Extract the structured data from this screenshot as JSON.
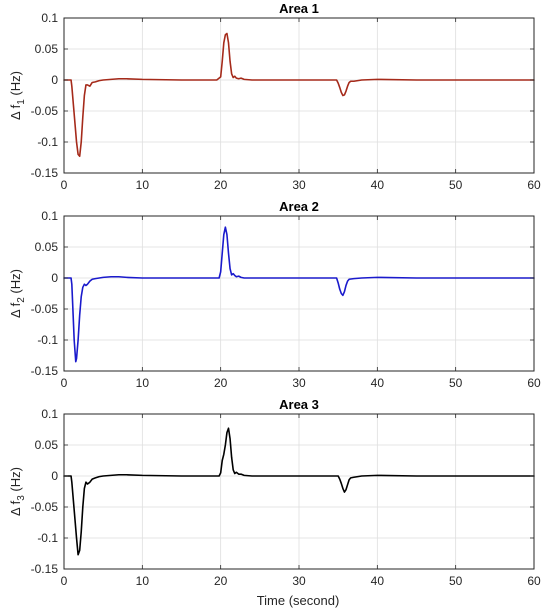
{
  "figure": {
    "xlabel": "Time (second)"
  },
  "chart_data": [
    {
      "type": "line",
      "title": "Area 1",
      "ylabel": {
        "prefix": "Δ f",
        "sub": "1",
        "suffix": " (Hz)"
      },
      "xlim": [
        0,
        60
      ],
      "ylim": [
        -0.15,
        0.1
      ],
      "xticks": [
        "0",
        "10",
        "20",
        "30",
        "40",
        "50",
        "60"
      ],
      "yticks": [
        "0.1",
        "0.05",
        "0",
        "-0.05",
        "-0.1",
        "-0.15"
      ],
      "grid": true,
      "color": "#a52a1a",
      "x": [
        0,
        0.9,
        1.0,
        1.2,
        1.4,
        1.6,
        1.8,
        2.0,
        2.2,
        2.4,
        2.6,
        2.8,
        3.0,
        3.3,
        3.6,
        4.0,
        4.5,
        5.0,
        6.0,
        7.0,
        8.0,
        10.0,
        15.0,
        19.5,
        20.0,
        20.2,
        20.4,
        20.6,
        20.8,
        21.0,
        21.2,
        21.4,
        21.6,
        21.8,
        22.0,
        22.3,
        22.6,
        23.0,
        24.0,
        25.0,
        30.0,
        34.8,
        35.0,
        35.2,
        35.4,
        35.6,
        35.8,
        36.0,
        36.2,
        36.4,
        36.6,
        37.0,
        38.0,
        40.0,
        45.0,
        50.0,
        55.0,
        60.0
      ],
      "y": [
        0,
        0,
        -0.01,
        -0.04,
        -0.07,
        -0.1,
        -0.12,
        -0.123,
        -0.1,
        -0.06,
        -0.025,
        -0.008,
        -0.008,
        -0.01,
        -0.004,
        -0.003,
        -0.001,
        0.0,
        0.001,
        0.002,
        0.002,
        0.001,
        0.0,
        0.0,
        0.005,
        0.03,
        0.06,
        0.073,
        0.075,
        0.06,
        0.03,
        0.01,
        0.004,
        0.006,
        0.003,
        0.002,
        0.003,
        0.001,
        0.0,
        0.0,
        0.0,
        0.0,
        -0.005,
        -0.012,
        -0.02,
        -0.025,
        -0.024,
        -0.018,
        -0.01,
        -0.004,
        -0.002,
        -0.002,
        0.0,
        0.001,
        0.0,
        0.0,
        0.0,
        0.0
      ]
    },
    {
      "type": "line",
      "title": "Area 2",
      "ylabel": {
        "prefix": "Δ f",
        "sub": "2",
        "suffix": " (Hz)"
      },
      "xlim": [
        0,
        60
      ],
      "ylim": [
        -0.15,
        0.1
      ],
      "xticks": [
        "0",
        "10",
        "20",
        "30",
        "40",
        "50",
        "60"
      ],
      "yticks": [
        "0.1",
        "0.05",
        "0",
        "-0.05",
        "-0.1",
        "-0.15"
      ],
      "grid": true,
      "color": "#1a1acc",
      "x": [
        0,
        0.9,
        1.0,
        1.1,
        1.3,
        1.5,
        1.6,
        1.8,
        2.0,
        2.2,
        2.4,
        2.6,
        2.8,
        3.0,
        3.3,
        3.6,
        4.0,
        4.5,
        5.0,
        6.0,
        7.0,
        8.0,
        10.0,
        15.0,
        19.8,
        20.0,
        20.2,
        20.4,
        20.6,
        20.8,
        21.0,
        21.2,
        21.4,
        21.6,
        21.8,
        22.0,
        22.3,
        22.6,
        23.0,
        24.0,
        25.0,
        30.0,
        34.8,
        35.0,
        35.2,
        35.4,
        35.6,
        35.8,
        36.0,
        36.2,
        36.4,
        37.0,
        38.0,
        40.0,
        45.0,
        50.0,
        55.0,
        60.0
      ],
      "y": [
        0,
        0,
        -0.01,
        -0.04,
        -0.1,
        -0.135,
        -0.13,
        -0.1,
        -0.06,
        -0.03,
        -0.015,
        -0.01,
        -0.012,
        -0.01,
        -0.005,
        -0.002,
        -0.001,
        0.0,
        0.001,
        0.002,
        0.002,
        0.001,
        0.0,
        0.0,
        0.0,
        0.01,
        0.04,
        0.07,
        0.082,
        0.07,
        0.04,
        0.015,
        0.005,
        0.007,
        0.004,
        0.002,
        0.003,
        0.001,
        0.0,
        0.0,
        0.0,
        0.0,
        0.0,
        -0.008,
        -0.018,
        -0.025,
        -0.028,
        -0.022,
        -0.012,
        -0.005,
        -0.002,
        -0.001,
        0.0,
        0.001,
        0.0,
        0.0,
        0.0,
        0.0
      ]
    },
    {
      "type": "line",
      "title": "Area 3",
      "ylabel": {
        "prefix": "Δ f",
        "sub": "3",
        "suffix": " (Hz)"
      },
      "xlim": [
        0,
        60
      ],
      "ylim": [
        -0.15,
        0.1
      ],
      "xticks": [
        "0",
        "10",
        "20",
        "30",
        "40",
        "50",
        "60"
      ],
      "yticks": [
        "0.1",
        "0.05",
        "0",
        "-0.05",
        "-0.1",
        "-0.15"
      ],
      "grid": true,
      "color": "#000000",
      "x": [
        0,
        0.9,
        1.0,
        1.2,
        1.4,
        1.6,
        1.8,
        2.0,
        2.2,
        2.4,
        2.6,
        2.8,
        3.0,
        3.3,
        3.6,
        4.0,
        4.5,
        5.0,
        6.0,
        7.0,
        8.0,
        10.0,
        15.0,
        19.8,
        20.0,
        20.2,
        20.4,
        20.6,
        20.8,
        21.0,
        21.2,
        21.4,
        21.6,
        21.8,
        22.0,
        22.3,
        22.6,
        23.0,
        24.0,
        25.0,
        30.0,
        35.0,
        35.2,
        35.4,
        35.6,
        35.8,
        36.0,
        36.2,
        36.4,
        36.6,
        37.0,
        38.0,
        40.0,
        45.0,
        50.0,
        55.0,
        60.0
      ],
      "y": [
        0,
        0,
        -0.01,
        -0.04,
        -0.07,
        -0.1,
        -0.127,
        -0.12,
        -0.09,
        -0.05,
        -0.02,
        -0.01,
        -0.013,
        -0.01,
        -0.005,
        -0.003,
        -0.001,
        0.0,
        0.001,
        0.002,
        0.002,
        0.001,
        0.0,
        0.0,
        0.005,
        0.025,
        0.035,
        0.05,
        0.07,
        0.077,
        0.06,
        0.03,
        0.01,
        0.004,
        0.006,
        0.003,
        0.003,
        0.001,
        0.0,
        0.0,
        0.0,
        0.0,
        -0.005,
        -0.012,
        -0.02,
        -0.026,
        -0.022,
        -0.014,
        -0.006,
        -0.003,
        -0.002,
        0.0,
        0.001,
        0.0,
        0.0,
        0.0,
        0.0
      ]
    }
  ]
}
